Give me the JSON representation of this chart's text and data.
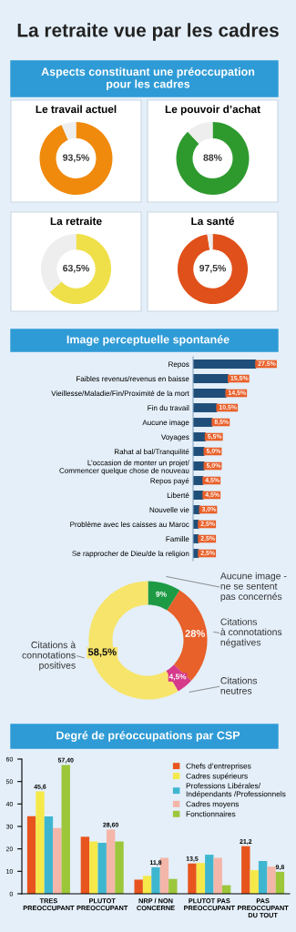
{
  "chart_data": [
    {
      "type": "other",
      "title": "La retraite vue par les cadres",
      "subtitle": "Aspects constituant une préoccupation\npour les cadres"
    },
    {
      "type": "donut",
      "title": "Le travail actuel",
      "categories": [
        null,
        null
      ],
      "values": [
        93.5,
        6.5
      ],
      "colors": [
        "#f08a0c",
        "#eeeeee"
      ],
      "value_labels": [
        "93,5%",
        null
      ]
    },
    {
      "type": "donut",
      "title": "Le pouvoir d’achat",
      "categories": [
        null,
        null
      ],
      "values": [
        88,
        12
      ],
      "colors": [
        "#2e9a2e",
        "#eeeeee"
      ],
      "value_labels": [
        "88%",
        null
      ]
    },
    {
      "type": "donut",
      "title": "La retraite",
      "categories": [
        null,
        null
      ],
      "values": [
        63.5,
        36.5
      ],
      "colors": [
        "#efe04a",
        "#eeeeee"
      ],
      "value_labels": [
        "63,5%",
        null
      ]
    },
    {
      "type": "donut",
      "title": "La santé",
      "categories": [
        null,
        null
      ],
      "values": [
        97.5,
        2.5
      ],
      "colors": [
        "#e0501a",
        "#eeeeee"
      ],
      "value_labels": [
        "97,5%",
        null
      ]
    },
    {
      "type": "bar",
      "orientation": "horizontal",
      "title": "Image perceptuelle spontanée",
      "color": "#1f4e79",
      "categories": [
        "Repos",
        "Faibles revenus/revenus en baisse",
        "Vieillesse/Maladie/Fin/Proximité de la mort",
        "Fin du travail",
        "Aucune image",
        "Voyages",
        "Rahat al bal/Tranquilité",
        "L’occasion de monter un projet/\nCommencer quelque chose de nouveau",
        "Repos payé",
        "Liberté",
        "Nouvelle vie",
        "Problème avec les caisses au Maroc",
        "Famille",
        "Se rapprocher de Dieu/de la religion"
      ],
      "values": [
        27.5,
        15.5,
        14.5,
        10.5,
        8.5,
        5.5,
        5.0,
        5.0,
        4.5,
        4.5,
        3.0,
        2.5,
        2.5,
        2.5
      ],
      "value_labels": [
        "27,5%",
        "15,5%",
        "14,5%",
        "10,5%",
        "8,5%",
        "5,5%",
        "5,0%",
        "5,0%",
        "4,5%",
        "4,5%",
        "3,0%",
        "2,5%",
        "2,5%",
        "2,5%"
      ]
    },
    {
      "type": "donut",
      "categories": [
        "Aucune image -\nne se sentent\npas concernés",
        "Citations\nà connotations\nnégatives",
        "Citations\nneutres",
        "Citations à\nconnotations\npositives"
      ],
      "values": [
        9,
        28,
        4.5,
        58.5
      ],
      "colors": [
        "#1e9a45",
        "#e8602a",
        "#d63a8a",
        "#f7e46a"
      ],
      "value_labels": [
        "9%",
        "28%",
        "4,5%",
        "58,5%"
      ]
    },
    {
      "type": "bar",
      "title": "Degré de préoccupations par CSP",
      "categories": [
        "TRES\nPREOCCUPANT",
        "PLUTOT\nPREOCCUPANT",
        "NRP / NON\nCONCERNE",
        "PLUTOT PAS\nPREOCCUPANT",
        "PAS\nPREOCCUPANT\nDU TOUT"
      ],
      "series": [
        {
          "name": "Chefs d’entreprises",
          "color": "#e8541e",
          "values": [
            34.6,
            25.4,
            6.3,
            13.5,
            21.2
          ],
          "value_labels": [
            null,
            null,
            null,
            "13,5",
            "21,2"
          ]
        },
        {
          "name": "Cadres supérieurs",
          "color": "#f5e94a",
          "values": [
            45.6,
            23.3,
            8.0,
            13.7,
            10.5
          ],
          "value_labels": [
            "45,6",
            null,
            null,
            null,
            null
          ]
        },
        {
          "name": "Professions Libérales/\nIndépendants /Professionnels",
          "color": "#3fb6d0",
          "values": [
            34.5,
            22.7,
            11.8,
            17.4,
            14.6
          ],
          "value_labels": [
            null,
            null,
            "11,8",
            null,
            null
          ]
        },
        {
          "name": "Cadres moyens",
          "color": "#f4b6a8",
          "values": [
            29.3,
            28.6,
            16.0,
            16.0,
            12.1
          ],
          "value_labels": [
            null,
            "28,60",
            null,
            null,
            null
          ]
        },
        {
          "name": "Fonctionnaires",
          "color": "#9cc73a",
          "values": [
            57.4,
            23.3,
            6.6,
            3.8,
            9.8
          ],
          "value_labels": [
            "57,40",
            null,
            null,
            null,
            "9,8"
          ]
        }
      ],
      "ylim": [
        0,
        60
      ],
      "yticks": [
        0,
        10,
        20,
        30,
        40,
        50,
        60
      ],
      "legend": "top right"
    }
  ]
}
